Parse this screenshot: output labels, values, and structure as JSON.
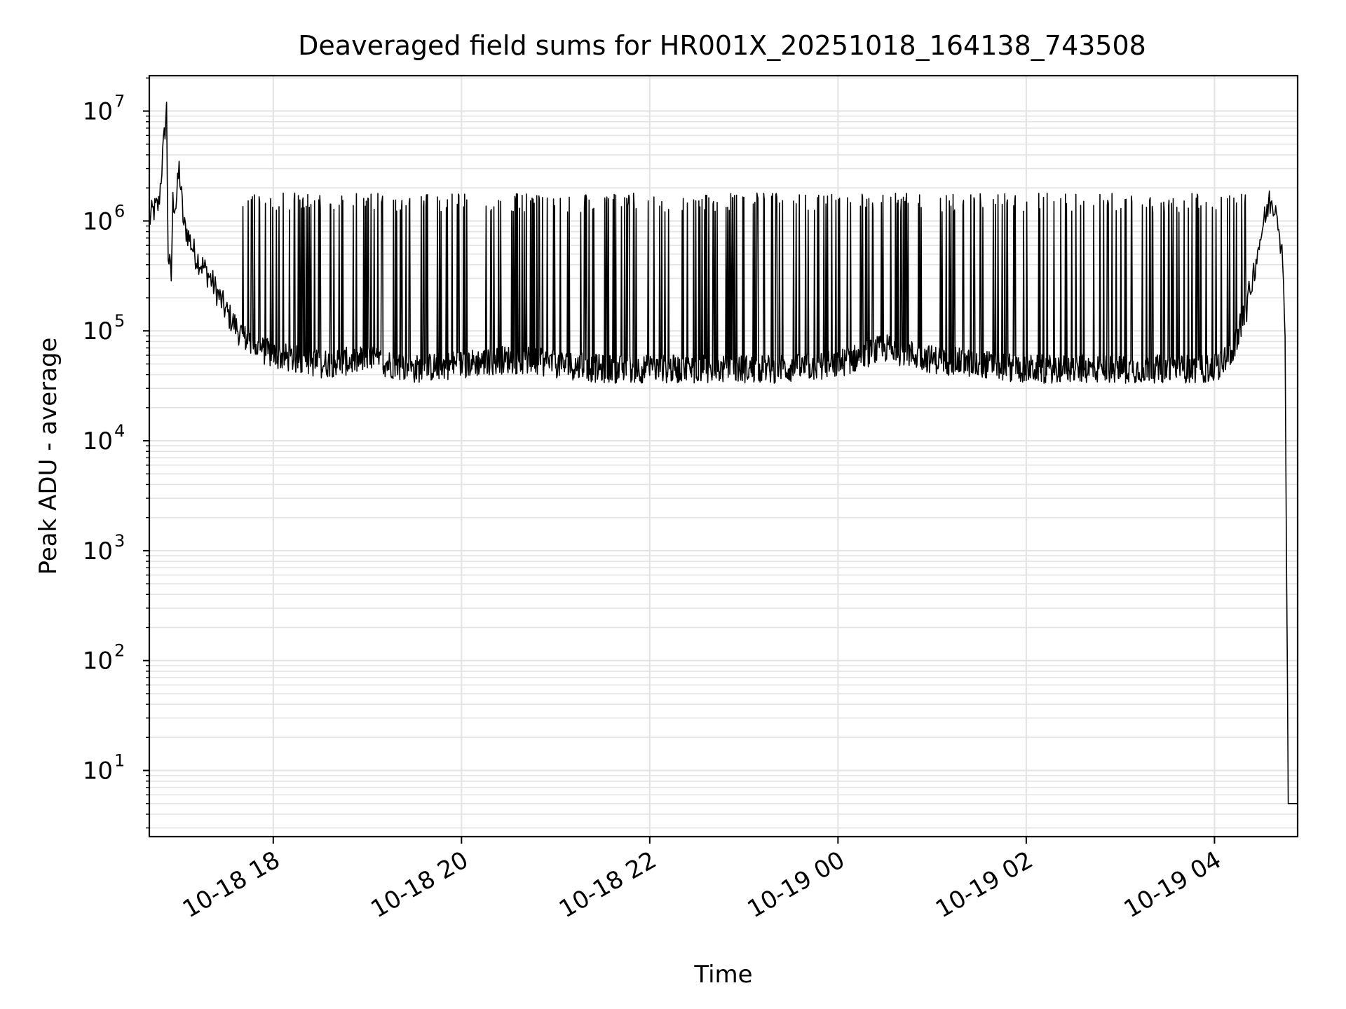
{
  "chart_data": {
    "type": "line",
    "title": "Deaveraged field sums for HR001X_20251018_164138_743508",
    "xlabel": "Time",
    "ylabel": "Peak ADU - average",
    "yscale": "log",
    "xlim": [
      "2025-10-18 16:41",
      "2025-10-19 04:53"
    ],
    "ylim": [
      2.5,
      21000000.0
    ],
    "grid": true,
    "line_color": "#000000",
    "x_ticks": [
      {
        "label": "10-18 18",
        "time": "2025-10-18 18:00"
      },
      {
        "label": "10-18 20",
        "time": "2025-10-18 20:00"
      },
      {
        "label": "10-18 22",
        "time": "2025-10-18 22:00"
      },
      {
        "label": "10-19 00",
        "time": "2025-10-19 00:00"
      },
      {
        "label": "10-19 02",
        "time": "2025-10-19 02:00"
      },
      {
        "label": "10-19 04",
        "time": "2025-10-19 04:00"
      }
    ],
    "y_ticks": [
      {
        "base": "10",
        "exp": "1",
        "value": 10
      },
      {
        "base": "10",
        "exp": "2",
        "value": 100
      },
      {
        "base": "10",
        "exp": "3",
        "value": 1000
      },
      {
        "base": "10",
        "exp": "4",
        "value": 10000
      },
      {
        "base": "10",
        "exp": "5",
        "value": 100000
      },
      {
        "base": "10",
        "exp": "6",
        "value": 1000000
      },
      {
        "base": "10",
        "exp": "7",
        "value": 10000000
      }
    ],
    "series": [
      {
        "x": [
          "2025-10-18 16:41",
          "2025-10-18 16:43",
          "2025-10-18 16:47",
          "2025-10-18 16:52",
          "2025-10-18 16:53",
          "2025-10-18 16:55",
          "2025-10-18 16:56",
          "2025-10-18 16:58",
          "2025-10-18 17:00",
          "2025-10-18 17:03",
          "2025-10-18 17:05",
          "2025-10-18 17:10",
          "2025-10-18 17:20",
          "2025-10-18 17:30",
          "2025-10-18 17:40",
          "2025-10-18 17:50",
          "2025-10-18 18:00",
          "2025-10-18 18:30",
          "2025-10-18 19:00",
          "2025-10-18 19:30",
          "2025-10-18 20:00",
          "2025-10-18 20:30",
          "2025-10-18 21:00",
          "2025-10-18 21:30",
          "2025-10-18 22:00",
          "2025-10-18 22:30",
          "2025-10-18 23:00",
          "2025-10-18 23:30",
          "2025-10-19 00:00",
          "2025-10-19 00:30",
          "2025-10-19 01:00",
          "2025-10-19 01:30",
          "2025-10-19 02:00",
          "2025-10-19 02:30",
          "2025-10-19 03:00",
          "2025-10-19 03:30",
          "2025-10-19 04:00",
          "2025-10-19 04:10",
          "2025-10-19 04:20",
          "2025-10-19 04:30",
          "2025-10-19 04:35",
          "2025-10-19 04:40",
          "2025-10-19 04:43",
          "2025-10-19 04:45",
          "2025-10-19 04:47",
          "2025-10-19 04:53"
        ],
        "y": [
          1000000,
          1200000,
          1400000,
          10500000,
          500000,
          300000,
          1500000,
          1400000,
          3000000,
          900000,
          800000,
          500000,
          300000,
          150000,
          90000,
          70000,
          60000,
          50000,
          55000,
          45000,
          50000,
          55000,
          50000,
          45000,
          45000,
          45000,
          45000,
          45000,
          50000,
          70000,
          55000,
          50000,
          45000,
          45000,
          45000,
          45000,
          45000,
          60000,
          150000,
          800000,
          1500000,
          1300000,
          500000,
          100000,
          5,
          5
        ]
      }
    ]
  }
}
